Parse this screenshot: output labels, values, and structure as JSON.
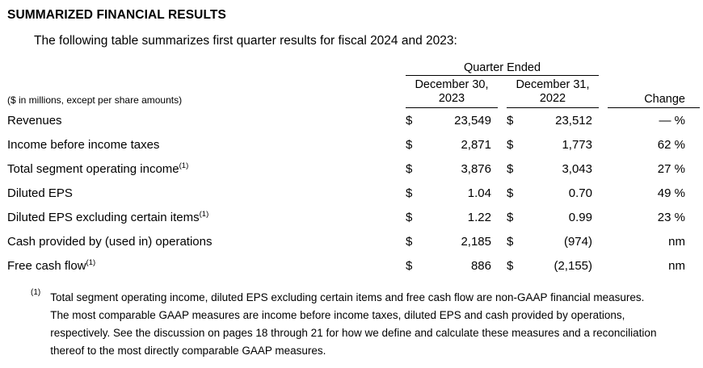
{
  "page": {
    "title": "SUMMARIZED FINANCIAL RESULTS",
    "intro": "The following table summarizes first quarter results for fiscal 2024 and 2023:"
  },
  "table": {
    "group_header": "Quarter Ended",
    "units_note": "($ in millions, except per share amounts)",
    "currency_symbol": "$",
    "columns": {
      "col1_line1": "December 30,",
      "col1_line2": "2023",
      "col2_line1": "December 31,",
      "col2_line2": "2022",
      "change": "Change"
    },
    "rows": [
      {
        "label": "Revenues",
        "sup": "",
        "v1": "23,549",
        "v2": "23,512",
        "change": "— %"
      },
      {
        "label": "Income before income taxes",
        "sup": "",
        "v1": "2,871",
        "v2": "1,773",
        "change": "62 %"
      },
      {
        "label": "Total segment operating income",
        "sup": "(1)",
        "v1": "3,876",
        "v2": "3,043",
        "change": "27 %"
      },
      {
        "label": "Diluted EPS",
        "sup": "",
        "v1": "1.04",
        "v2": "0.70",
        "change": "49 %"
      },
      {
        "label": "Diluted EPS excluding certain items",
        "sup": "(1)",
        "v1": "1.22",
        "v2": "0.99",
        "change": "23 %"
      },
      {
        "label": "Cash provided by (used in) operations",
        "sup": "",
        "v1": "2,185",
        "v2": "(974)",
        "change": "nm"
      },
      {
        "label": "Free cash flow",
        "sup": "(1)",
        "v1": "886",
        "v2": "(2,155)",
        "change": "nm"
      }
    ]
  },
  "footnote": {
    "marker": "(1)",
    "text": "Total segment operating income, diluted EPS excluding certain items and free cash flow are non-GAAP financial measures. The most comparable GAAP measures are income before income taxes, diluted EPS and cash provided by operations, respectively. See the discussion on pages 18 through 21 for how we define and calculate these measures and a reconciliation thereof to the most directly comparable GAAP measures."
  },
  "colors": {
    "text": "#000000",
    "background": "#ffffff",
    "rule": "#000000"
  }
}
